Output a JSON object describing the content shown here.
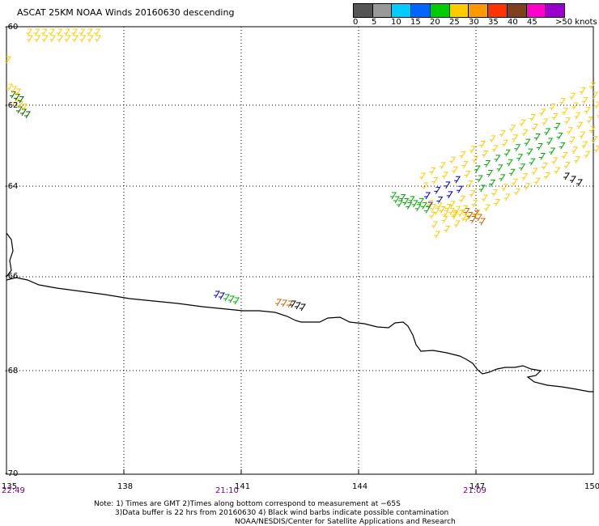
{
  "title": "ASCAT 25KM NOAA Winds 20160630 descending",
  "legend": {
    "ticks": [
      "0",
      "5",
      "10",
      "15",
      "20",
      "25",
      "30",
      "35",
      "40",
      "45",
      ">50 knots"
    ],
    "colors": [
      "#555555",
      "#999999",
      "#00ccff",
      "#0066ff",
      "#00cc00",
      "#ffcc00",
      "#ff9900",
      "#ff3300",
      "#804020",
      "#ff00cc",
      "#9900cc"
    ]
  },
  "latitude_labels": [
    "-60",
    "-62",
    "-64",
    "-66",
    "-68",
    "-70"
  ],
  "longitude_labels": [
    "135",
    "138",
    "141",
    "144",
    "147",
    "150"
  ],
  "time_labels": [
    "22:49",
    "21:10",
    "21:09"
  ],
  "footer": {
    "line1": "Note: 1) Times are GMT 2)Times along bottom correspond to measurement at −65S",
    "line2": "3)Data buffer is 22 hrs from 20160630 4) Black wind barbs indicate possible contamination",
    "line3": "NOAA/NESDIS/Center for Satellite Applications and Research"
  },
  "barb_colors": {
    "green": "#00aa00",
    "yellow": "#ffcc00",
    "blue": "#0000cc",
    "orange": "#cc6600",
    "black": "#000000",
    "dark_green": "#006600"
  }
}
